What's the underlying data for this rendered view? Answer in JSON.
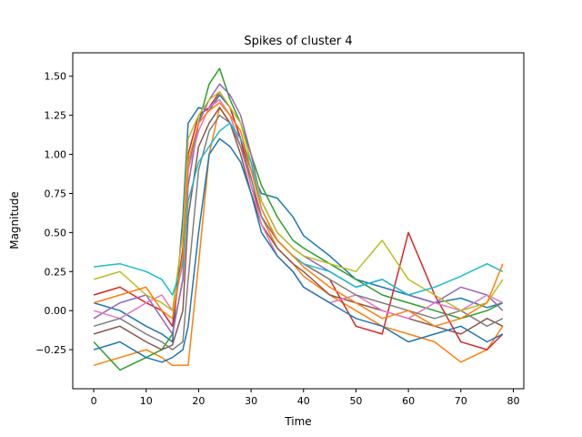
{
  "chart_data": {
    "type": "line",
    "title": "Spikes of cluster 4",
    "xlabel": "Time",
    "ylabel": "Magnitude",
    "xlim": [
      -4,
      82
    ],
    "ylim": [
      -0.5,
      1.65
    ],
    "x_ticks": [
      0,
      10,
      20,
      30,
      40,
      50,
      60,
      70,
      80
    ],
    "y_ticks": [
      -0.25,
      0.0,
      0.25,
      0.5,
      0.75,
      1.0,
      1.25,
      1.5
    ],
    "y_tick_labels": [
      "−0.25",
      "0.00",
      "0.25",
      "0.50",
      "0.75",
      "1.00",
      "1.25",
      "1.50"
    ],
    "x_points": [
      0,
      5,
      10,
      13,
      15,
      17,
      18,
      20,
      22,
      24,
      26,
      28,
      30,
      32,
      35,
      38,
      40,
      45,
      50,
      55,
      60,
      65,
      70,
      75,
      78
    ],
    "series_count": 12,
    "series": [
      {
        "color": "#1f77b4",
        "values": [
          0.05,
          0.0,
          -0.1,
          -0.15,
          -0.2,
          0.6,
          1.2,
          1.3,
          1.28,
          1.38,
          1.3,
          1.1,
          0.9,
          0.75,
          0.72,
          0.6,
          0.48,
          0.35,
          0.2,
          0.15,
          0.1,
          0.05,
          0.08,
          0.02,
          0.05
        ]
      },
      {
        "color": "#ff7f0e",
        "values": [
          -0.35,
          -0.3,
          -0.25,
          -0.3,
          -0.35,
          -0.35,
          -0.35,
          0.3,
          1.0,
          1.3,
          1.2,
          1.1,
          0.85,
          0.6,
          0.4,
          0.3,
          0.22,
          0.1,
          0.0,
          -0.1,
          -0.15,
          -0.2,
          -0.33,
          -0.25,
          -0.1
        ]
      },
      {
        "color": "#2ca02c",
        "values": [
          -0.2,
          -0.38,
          -0.3,
          -0.25,
          -0.15,
          0.2,
          0.9,
          1.2,
          1.45,
          1.55,
          1.35,
          1.2,
          1.0,
          0.8,
          0.6,
          0.45,
          0.4,
          0.3,
          0.2,
          0.1,
          0.05,
          0.0,
          -0.05,
          0.0,
          0.05
        ]
      },
      {
        "color": "#d62728",
        "values": [
          0.1,
          0.15,
          0.05,
          0.0,
          -0.1,
          0.4,
          1.0,
          1.25,
          1.3,
          1.4,
          1.3,
          1.1,
          0.8,
          0.6,
          0.45,
          0.35,
          0.3,
          0.2,
          -0.1,
          -0.15,
          0.5,
          0.1,
          -0.2,
          -0.25,
          -0.15
        ]
      },
      {
        "color": "#9467bd",
        "values": [
          -0.05,
          0.05,
          0.1,
          -0.05,
          -0.15,
          0.2,
          0.8,
          1.2,
          1.35,
          1.45,
          1.38,
          1.25,
          1.0,
          0.7,
          0.5,
          0.4,
          0.35,
          0.25,
          0.15,
          0.2,
          0.1,
          0.05,
          0.15,
          0.1,
          0.0
        ]
      },
      {
        "color": "#8c564b",
        "values": [
          -0.15,
          -0.1,
          -0.2,
          -0.25,
          -0.22,
          0.0,
          0.6,
          1.05,
          1.2,
          1.3,
          1.2,
          1.0,
          0.75,
          0.55,
          0.4,
          0.3,
          0.25,
          0.1,
          0.05,
          0.0,
          -0.05,
          -0.1,
          -0.15,
          -0.05,
          -0.1
        ]
      },
      {
        "color": "#e377c2",
        "values": [
          0.0,
          -0.05,
          0.05,
          0.1,
          0.0,
          0.3,
          0.9,
          1.15,
          1.3,
          1.35,
          1.25,
          1.05,
          0.8,
          0.55,
          0.35,
          0.25,
          0.15,
          0.05,
          0.1,
          0.0,
          -0.05,
          0.05,
          0.0,
          0.1,
          0.05
        ]
      },
      {
        "color": "#7f7f7f",
        "values": [
          -0.1,
          -0.05,
          -0.15,
          -0.2,
          -0.25,
          -0.2,
          0.2,
          0.9,
          1.15,
          1.25,
          1.2,
          1.05,
          0.85,
          0.6,
          0.45,
          0.35,
          0.3,
          0.2,
          0.1,
          0.05,
          0.0,
          -0.05,
          0.0,
          -0.1,
          -0.05
        ]
      },
      {
        "color": "#bcbd22",
        "values": [
          0.2,
          0.25,
          0.1,
          0.05,
          0.0,
          0.5,
          1.1,
          1.25,
          1.35,
          1.4,
          1.3,
          1.2,
          0.95,
          0.7,
          0.5,
          0.4,
          0.35,
          0.3,
          0.25,
          0.45,
          0.2,
          0.1,
          0.0,
          0.05,
          0.2
        ]
      },
      {
        "color": "#17becf",
        "values": [
          0.28,
          0.3,
          0.25,
          0.2,
          0.1,
          0.3,
          0.7,
          0.95,
          1.05,
          1.15,
          1.2,
          1.1,
          0.95,
          0.65,
          0.45,
          0.35,
          0.3,
          0.25,
          0.15,
          0.2,
          0.1,
          0.15,
          0.22,
          0.3,
          0.25
        ]
      },
      {
        "color": "#1f77b4",
        "values": [
          -0.25,
          -0.2,
          -0.3,
          -0.33,
          -0.3,
          -0.25,
          -0.1,
          0.5,
          1.0,
          1.1,
          1.05,
          0.95,
          0.75,
          0.5,
          0.35,
          0.25,
          0.15,
          0.05,
          -0.05,
          -0.1,
          -0.2,
          -0.15,
          -0.1,
          -0.2,
          -0.15
        ]
      },
      {
        "color": "#ff7f0e",
        "values": [
          0.05,
          0.1,
          0.15,
          0.0,
          -0.05,
          0.35,
          0.95,
          1.2,
          1.28,
          1.33,
          1.25,
          1.15,
          0.9,
          0.65,
          0.45,
          0.35,
          0.28,
          0.15,
          0.05,
          -0.05,
          0.0,
          -0.1,
          -0.05,
          0.05,
          0.3
        ]
      }
    ]
  }
}
